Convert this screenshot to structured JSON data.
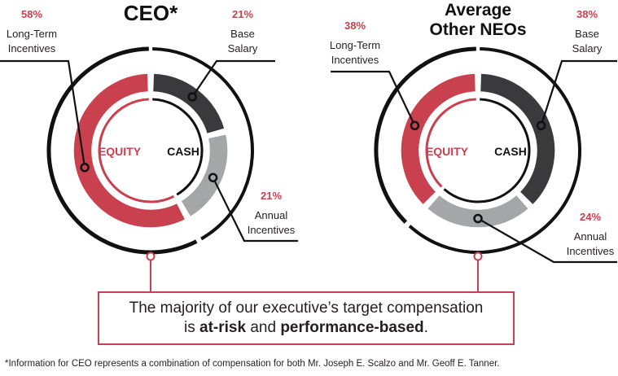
{
  "chart_data": [
    {
      "type": "pie",
      "title": "CEO*",
      "center_labels": {
        "equity": "EQUITY",
        "cash": "CASH"
      },
      "slices": [
        {
          "key": "lti",
          "label": "Long-Term Incentives",
          "pct_label": "58%",
          "value": 58,
          "group": "EQUITY",
          "color": "#c9414f"
        },
        {
          "key": "base",
          "label": "Base Salary",
          "pct_label": "21%",
          "value": 21,
          "group": "CASH",
          "color": "#3a3a3c"
        },
        {
          "key": "annual",
          "label": "Annual Incentives",
          "pct_label": "21%",
          "value": 21,
          "group": "CASH",
          "color": "#a5a6a8"
        }
      ]
    },
    {
      "type": "pie",
      "title": "Average Other NEOs",
      "center_labels": {
        "equity": "EQUITY",
        "cash": "CASH"
      },
      "slices": [
        {
          "key": "lti",
          "label": "Long-Term Incentives",
          "pct_label": "38%",
          "value": 38,
          "group": "EQUITY",
          "color": "#c9414f"
        },
        {
          "key": "base",
          "label": "Base Salary",
          "pct_label": "38%",
          "value": 38,
          "group": "CASH",
          "color": "#3a3a3c"
        },
        {
          "key": "annual",
          "label": "Annual Incentives",
          "pct_label": "24%",
          "value": 24,
          "group": "CASH",
          "color": "#a5a6a8"
        }
      ]
    }
  ],
  "callout": {
    "line1": "The majority of our executive’s target compensation",
    "line2_prefix": "is ",
    "at_risk": "at-risk",
    "and": " and ",
    "performance": "performance-based",
    "period": "."
  },
  "footnote": "*Information for CEO represents a combination of compensation for both Mr. Joseph E. Scalzo and Mr. Geoff E. Tanner.",
  "colors": {
    "red": "#c9414f",
    "dark": "#3a3a3c",
    "gray": "#a5a6a8",
    "text": "#231f20",
    "black": "#111111"
  }
}
